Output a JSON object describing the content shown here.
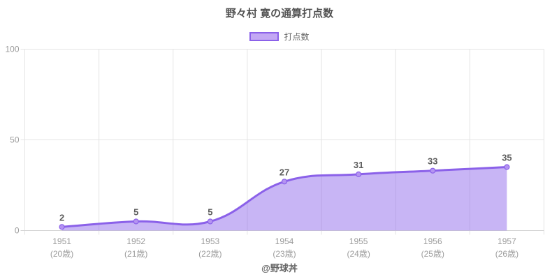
{
  "chart_data": {
    "type": "area",
    "title": "野々村 寛の通算打点数",
    "legend": {
      "label": "打点数",
      "position": "top"
    },
    "categories": [
      "1951",
      "1952",
      "1953",
      "1954",
      "1955",
      "1956",
      "1957"
    ],
    "category_sublabels": [
      "(20歳)",
      "(21歳)",
      "(22歳)",
      "(23歳)",
      "(24歳)",
      "(25歳)",
      "(26歳)"
    ],
    "series": [
      {
        "name": "打点数",
        "values": [
          2,
          5,
          5,
          27,
          31,
          33,
          35
        ]
      }
    ],
    "ylim": [
      0,
      100
    ],
    "yticks": [
      0,
      50,
      100
    ],
    "grid": "on",
    "footer": "@野球丼",
    "colors": {
      "line": "#8b61e9",
      "fill": "rgba(141,100,235,0.48)",
      "point_fill": "#b493f1",
      "swatch_fill": "#c3a8f4",
      "grid": "#e4e4e4",
      "axis_line": "#d6d6d6",
      "tick_text": "#9b9b9b",
      "title_text": "#525252",
      "value_label_text": "#5c5c5c",
      "legend_text": "#666666"
    }
  }
}
